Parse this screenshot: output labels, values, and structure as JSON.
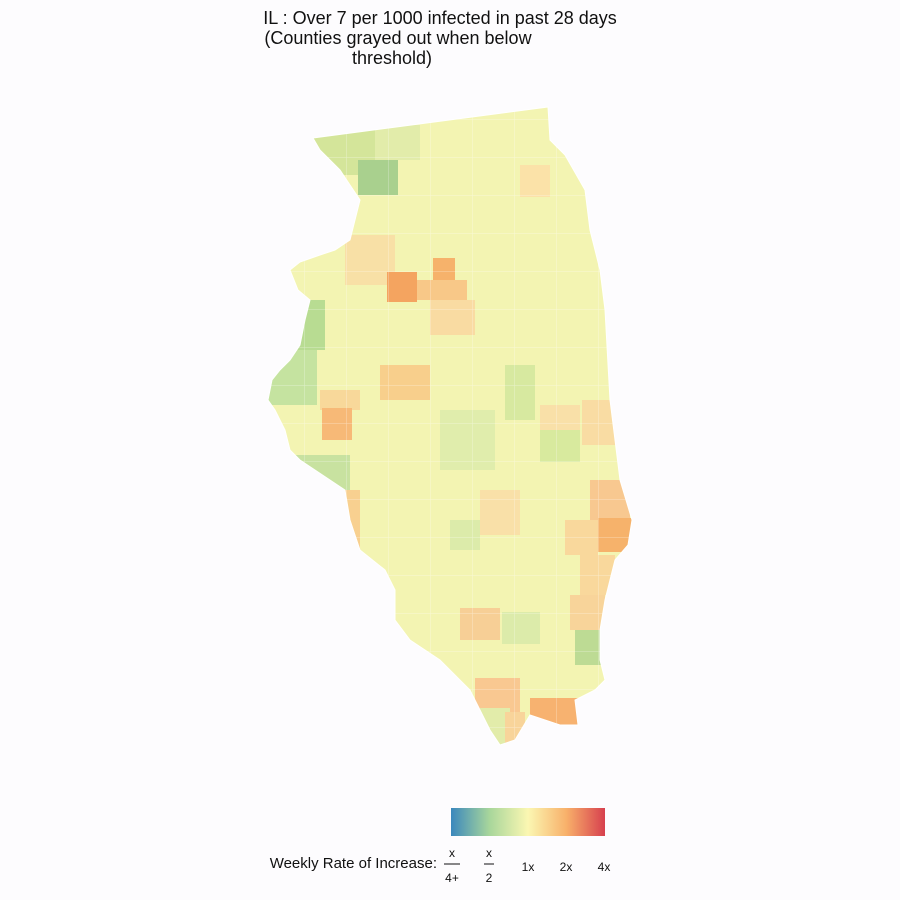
{
  "title": [
    "IL : Over 7 per 1000 infected in past 28 days",
    "(Counties grayed out when below",
    "threshold)"
  ],
  "legend": {
    "label": "Weekly Rate of Increase:",
    "ticks": [
      {
        "numerator": "x",
        "denominator": "4+"
      },
      {
        "numerator": "x",
        "denominator": "2"
      },
      "1x",
      "2x",
      "4x"
    ]
  }
}
